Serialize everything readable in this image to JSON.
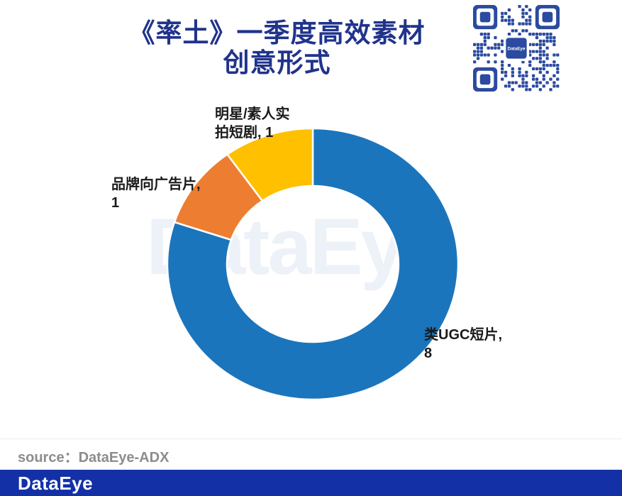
{
  "page": {
    "title_line1": "《率土》一季度高效素材",
    "title_line2": "创意形式",
    "watermark": "DataEye",
    "source_label": "source：DataEye-ADX",
    "footer_logo": "DataEye"
  },
  "qr": {
    "center_label": "DataEye",
    "color": "#2B4AA0"
  },
  "colors": {
    "title": "#20338C",
    "label_text": "#1A1A1A",
    "watermark": "#EDF1F8",
    "source_text": "#8C8C8C",
    "footer_bg": "#1330A6",
    "slice_border": "#FFFFFF"
  },
  "chart_data": {
    "type": "pie",
    "subtype": "donut",
    "title": "《率土》一季度高效素材创意形式",
    "total": 10,
    "start_angle_deg": 0,
    "direction": "clockwise",
    "inner_radius_ratio": 0.59,
    "legend_position": "none",
    "slices": [
      {
        "id": "ugc-short-video",
        "label": "类UGC短片",
        "value": 8,
        "color": "#1B75BC"
      },
      {
        "id": "brand-ad-video",
        "label": "品牌向广告片",
        "value": 1,
        "color": "#ED7D31"
      },
      {
        "id": "star-amateur-short-drama",
        "label": "明星/素人实拍短剧",
        "value": 1,
        "color": "#FFC000"
      }
    ],
    "labels": {
      "star": {
        "line1": "明星/素人实",
        "line2": "拍短剧, 1"
      },
      "brand": {
        "line1": "品牌向广告片,",
        "line2": "1"
      },
      "ugc": {
        "line1": "类UGC短片,",
        "line2": "8"
      }
    }
  }
}
